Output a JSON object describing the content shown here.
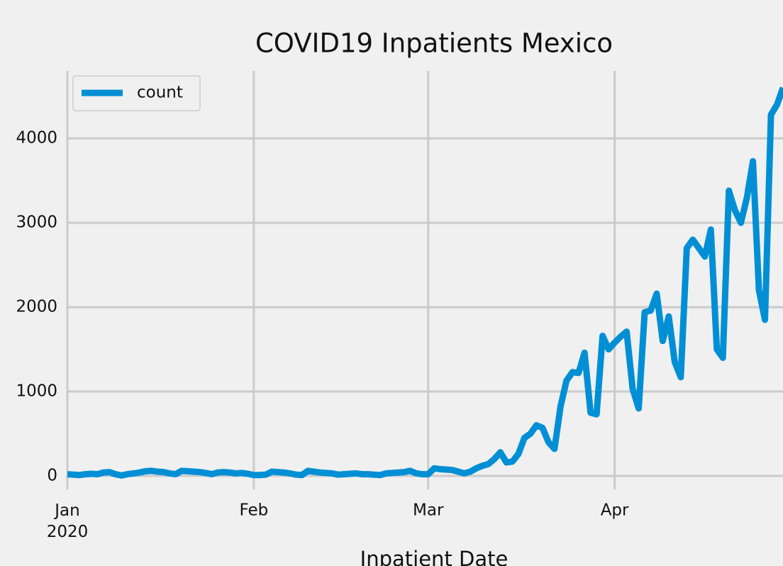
{
  "chart_data": {
    "type": "line",
    "title": "COVID19 Inpatients Mexico",
    "x_label": "Inpatient Date",
    "series": [
      {
        "name": "count",
        "color": "#008fd5",
        "values": [
          20,
          15,
          10,
          20,
          25,
          20,
          40,
          45,
          20,
          5,
          20,
          30,
          40,
          55,
          60,
          50,
          45,
          30,
          20,
          60,
          55,
          50,
          45,
          35,
          20,
          40,
          45,
          40,
          30,
          35,
          25,
          10,
          10,
          15,
          50,
          45,
          40,
          30,
          15,
          10,
          60,
          50,
          40,
          35,
          30,
          15,
          20,
          25,
          30,
          20,
          20,
          15,
          10,
          30,
          35,
          40,
          45,
          60,
          30,
          20,
          20,
          90,
          80,
          75,
          70,
          50,
          30,
          50,
          90,
          120,
          140,
          200,
          280,
          160,
          170,
          260,
          450,
          500,
          600,
          570,
          400,
          320,
          820,
          1130,
          1230,
          1220,
          1460,
          750,
          730,
          1660,
          1500,
          1580,
          1650,
          1710,
          1030,
          800,
          1940,
          1960,
          2160,
          1600,
          1890,
          1350,
          1170,
          2700,
          2800,
          2700,
          2600,
          2920,
          1500,
          1400,
          3380,
          3150,
          3000,
          3300,
          3730,
          2200,
          1850,
          4280,
          4400,
          4600
        ]
      }
    ],
    "xlim": [
      0,
      119
    ],
    "xticks": [
      {
        "value": 0,
        "label": "Jan\n2020"
      },
      {
        "value": 31,
        "label": "Feb"
      },
      {
        "value": 60,
        "label": "Mar"
      },
      {
        "value": 91,
        "label": "Apr"
      }
    ],
    "ylim": [
      -160,
      4800
    ],
    "yticks": [
      0,
      1000,
      2000,
      3000,
      4000
    ],
    "grid": true,
    "legend": "upper left"
  }
}
